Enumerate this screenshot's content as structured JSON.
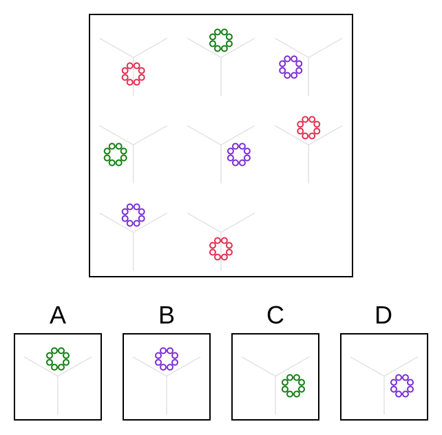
{
  "puzzle": {
    "grid": {
      "rows": 3,
      "cols": 3,
      "cells": [
        {
          "row": 0,
          "col": 0,
          "ring_color": "red",
          "ring_position": "center"
        },
        {
          "row": 0,
          "col": 1,
          "ring_color": "green",
          "ring_position": "top"
        },
        {
          "row": 0,
          "col": 2,
          "ring_color": "purple",
          "ring_position": "left"
        },
        {
          "row": 1,
          "col": 0,
          "ring_color": "green",
          "ring_position": "left"
        },
        {
          "row": 1,
          "col": 1,
          "ring_color": "purple",
          "ring_position": "right"
        },
        {
          "row": 1,
          "col": 2,
          "ring_color": "red",
          "ring_position": "top"
        },
        {
          "row": 2,
          "col": 0,
          "ring_color": "purple",
          "ring_position": "top"
        },
        {
          "row": 2,
          "col": 1,
          "ring_color": "red",
          "ring_position": "center"
        },
        {
          "row": 2,
          "col": 2,
          "ring_color": null,
          "ring_position": null
        }
      ]
    },
    "options": [
      {
        "label": "A",
        "ring_color": "green",
        "ring_position": "top"
      },
      {
        "label": "B",
        "ring_color": "purple",
        "ring_position": "top"
      },
      {
        "label": "C",
        "ring_color": "green",
        "ring_position": "right"
      },
      {
        "label": "D",
        "ring_color": "purple",
        "ring_position": "right"
      }
    ]
  },
  "colors": {
    "red": "#e0304e",
    "green": "#138013",
    "purple": "#7a2fd6",
    "y_lines": "#e2e2e2",
    "border": "#000000"
  },
  "icons": {
    "cell_glyph": "y-junction-lines",
    "ring": "ring-of-8-small-circles"
  }
}
